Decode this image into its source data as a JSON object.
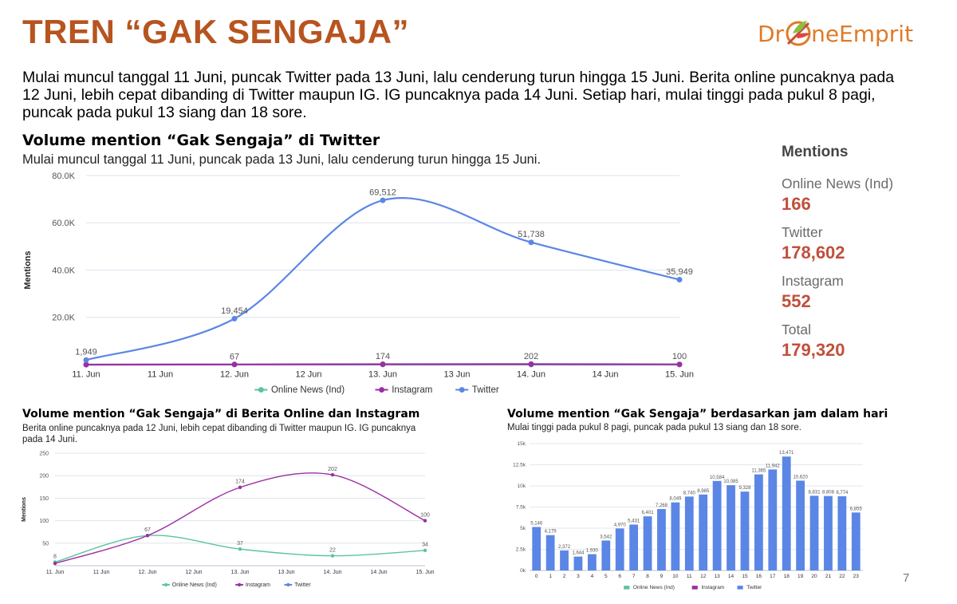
{
  "slide": {
    "title": "TREN “GAK SENGAJA”",
    "logo_text_pre": "Dr",
    "logo_text_post": "neEmprit",
    "intro": "Mulai muncul tanggal 11 Juni, puncak Twitter pada 13 Juni, lalu cenderung turun hingga 15 Juni. Berita online puncaknya pada 12 Juni, lebih cepat dibanding di Twitter maupun IG. IG puncaknya pada 14 Juni. Setiap hari, mulai tinggi pada pukul 8 pagi, puncak pada pukul 13 siang dan 18 sore.",
    "page_number": "7"
  },
  "colors": {
    "title": "#b7541f",
    "online_news": "#5cc49a",
    "instagram": "#9b2fa4",
    "twitter": "#5b86e5",
    "mention_value": "#c0503b"
  },
  "mentions": {
    "heading": "Mentions",
    "items": [
      {
        "label": "Online News (Ind)",
        "value": "166"
      },
      {
        "label": "Twitter",
        "value": "178,602"
      },
      {
        "label": "Instagram",
        "value": "552"
      },
      {
        "label": "Total",
        "value": "179,320"
      }
    ]
  },
  "chart_data": [
    {
      "type": "line",
      "title": "Volume mention “Gak Sengaja” di Twitter",
      "subtitle": "Mulai muncul tanggal 11 Juni, puncak pada 13 Juni, lalu cenderung turun hingga 15 Juni.",
      "ylabel": "Mentions",
      "ylim": [
        0,
        80000
      ],
      "yticks": [
        "20.0K",
        "40.0K",
        "60.0K",
        "80.0K"
      ],
      "categories": [
        "11. Jun",
        "11 Jun",
        "12. Jun",
        "12 Jun",
        "13. Jun",
        "13 Jun",
        "14. Jun",
        "14 Jun",
        "15. Jun"
      ],
      "legend_position": "bottom",
      "series": [
        {
          "name": "Online News (Ind)",
          "x": [
            0,
            2,
            4,
            6,
            8
          ],
          "values": [
            8,
            67,
            37,
            22,
            34
          ],
          "labels": [
            "",
            "67",
            "",
            "",
            ""
          ]
        },
        {
          "name": "Instagram",
          "x": [
            0,
            2,
            4,
            6,
            8
          ],
          "values": [
            5,
            67,
            174,
            202,
            100
          ],
          "labels": [
            "",
            "",
            "174",
            "202",
            "100"
          ]
        },
        {
          "name": "Twitter",
          "x": [
            0,
            2,
            4,
            6,
            8
          ],
          "values": [
            1949,
            19454,
            69512,
            51738,
            35949
          ],
          "labels": [
            "1,949",
            "19,454",
            "69,512",
            "51,738",
            "35,949"
          ]
        }
      ]
    },
    {
      "type": "line",
      "title": "Volume mention “Gak Sengaja” di Berita Online dan Instagram",
      "subtitle": "Berita online puncaknya pada 12 Juni, lebih cepat dibanding di Twitter maupun IG. IG puncaknya pada 14 Juni.",
      "ylabel": "Mentions",
      "ylim": [
        0,
        250
      ],
      "yticks": [
        "50",
        "100",
        "150",
        "200",
        "250"
      ],
      "categories": [
        "11. Jun",
        "11 Jun",
        "12. Jun",
        "12 Jun",
        "13. Jun",
        "13 Jun",
        "14. Jun",
        "14 Jun",
        "15. Jun"
      ],
      "legend_position": "bottom",
      "series": [
        {
          "name": "Online News (Ind)",
          "x": [
            0,
            2,
            4,
            6,
            8
          ],
          "values": [
            8,
            67,
            37,
            22,
            34
          ],
          "labels": [
            "8",
            "",
            "37",
            "22",
            "34"
          ]
        },
        {
          "name": "Instagram",
          "x": [
            0,
            2,
            4,
            6,
            8
          ],
          "values": [
            5,
            67,
            174,
            202,
            100
          ],
          "labels": [
            "",
            "67",
            "174",
            "202",
            "100"
          ]
        },
        {
          "name": "Twitter",
          "x": [],
          "values": [],
          "labels": []
        }
      ]
    },
    {
      "type": "bar",
      "title": "Volume mention “Gak Sengaja” berdasarkan jam dalam hari",
      "subtitle": "Mulai tinggi pada pukul 8 pagi, puncak pada pukul 13 siang dan 18 sore.",
      "ylim": [
        0,
        15000
      ],
      "yticks": [
        "0k",
        "2.5k",
        "5k",
        "7.5k",
        "10k",
        "12.5k",
        "15k"
      ],
      "categories": [
        "0",
        "1",
        "2",
        "3",
        "4",
        "5",
        "6",
        "7",
        "8",
        "9",
        "10",
        "11",
        "12",
        "13",
        "14",
        "15",
        "16",
        "17",
        "18",
        "19",
        "20",
        "21",
        "22",
        "23"
      ],
      "legend_position": "bottom",
      "legend": [
        "Online News (Ind)",
        "Instagram",
        "Twitter"
      ],
      "values": [
        5146,
        4179,
        2372,
        1644,
        1930,
        3542,
        4970,
        5431,
        6401,
        7268,
        8049,
        8740,
        8985,
        10584,
        10085,
        9328,
        11365,
        11942,
        13471,
        10620,
        8831,
        8808,
        8774,
        6855
      ],
      "labels": [
        "5,146",
        "4,179",
        "2,372",
        "1,644",
        "1,930",
        "3,542",
        "4,970",
        "5,431",
        "6,401",
        "7,268",
        "8,049",
        "8,740",
        "8,985",
        "10,584",
        "10,085",
        "9,328",
        "11,365",
        "11,942",
        "13,471",
        "10,620",
        "8,831",
        "8,808",
        "8,774",
        "6,855"
      ]
    }
  ]
}
